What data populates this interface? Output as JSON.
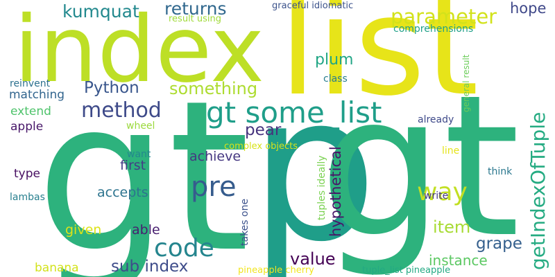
{
  "words": [
    {
      "text": "gt",
      "color": "#2db27d"
    },
    {
      "text": "p",
      "color": "#1f9e89"
    },
    {
      "text": "index",
      "color": "#bddf26"
    },
    {
      "text": "list",
      "color": "#e7e419"
    },
    {
      "text": "gt",
      "color": "#2db27d"
    },
    {
      "text": "gt some_list",
      "color": "#1f9e89"
    },
    {
      "text": "pre",
      "color": "#365c8d"
    },
    {
      "text": "code",
      "color": "#25858e"
    },
    {
      "text": "method",
      "color": "#3e4a89"
    },
    {
      "text": "parameter",
      "color": "#d2e21b"
    },
    {
      "text": "getIndexOfTuple",
      "color": "#25ab82"
    },
    {
      "text": "way",
      "color": "#c2df23"
    },
    {
      "text": "returns",
      "color": "#31688e"
    },
    {
      "text": "kumquat",
      "color": "#23898e"
    },
    {
      "text": "something",
      "color": "#addc30"
    },
    {
      "text": "Python",
      "color": "#39568c"
    },
    {
      "text": "hope",
      "color": "#3f4889"
    },
    {
      "text": "pear",
      "color": "#46337e"
    },
    {
      "text": "plum",
      "color": "#21a685"
    },
    {
      "text": "item",
      "color": "#a8db34"
    },
    {
      "text": "value",
      "color": "#440154"
    },
    {
      "text": "grape",
      "color": "#35608d"
    },
    {
      "text": "sub index",
      "color": "#3e4c8a"
    },
    {
      "text": "hypothetical",
      "color": "#481668"
    },
    {
      "text": "instance",
      "color": "#5cc863"
    },
    {
      "text": "achieve",
      "color": "#453781"
    },
    {
      "text": "first",
      "color": "#433e85"
    },
    {
      "text": "accepts",
      "color": "#2c738e"
    },
    {
      "text": "given",
      "color": "#dde318"
    },
    {
      "text": "able",
      "color": "#481f70"
    },
    {
      "text": "banana",
      "color": "#d2e21b"
    },
    {
      "text": "matching",
      "color": "#32658e"
    },
    {
      "text": "extend",
      "color": "#4ec36b"
    },
    {
      "text": "apple",
      "color": "#481769"
    },
    {
      "text": "type",
      "color": "#470e61"
    },
    {
      "text": "lambas",
      "color": "#277f8e"
    },
    {
      "text": "reinvent",
      "color": "#2d718e"
    },
    {
      "text": "wheel",
      "color": "#9bd93c"
    },
    {
      "text": "want",
      "color": "#23888e"
    },
    {
      "text": "already",
      "color": "#3e4989"
    },
    {
      "text": "write",
      "color": "#453882"
    },
    {
      "text": "think",
      "color": "#2a778e"
    },
    {
      "text": "line",
      "color": "#e5e419"
    },
    {
      "text": "class",
      "color": "#287d8e"
    },
    {
      "text": "takes one",
      "color": "#3b518b"
    },
    {
      "text": "tuples ideally",
      "color": "#7ad151"
    },
    {
      "text": "general result",
      "color": "#6ccd5a"
    },
    {
      "text": "graceful idiomatic",
      "color": "#3b528b"
    },
    {
      "text": "result using",
      "color": "#a0da39"
    },
    {
      "text": "comprehensions",
      "color": "#1fa088"
    },
    {
      "text": "complex objects",
      "color": "#d8e219"
    },
    {
      "text": "pineapple cherry",
      "color": "#f1e51d"
    },
    {
      "text": "tuple_list pineapple",
      "color": "#23a983"
    }
  ]
}
